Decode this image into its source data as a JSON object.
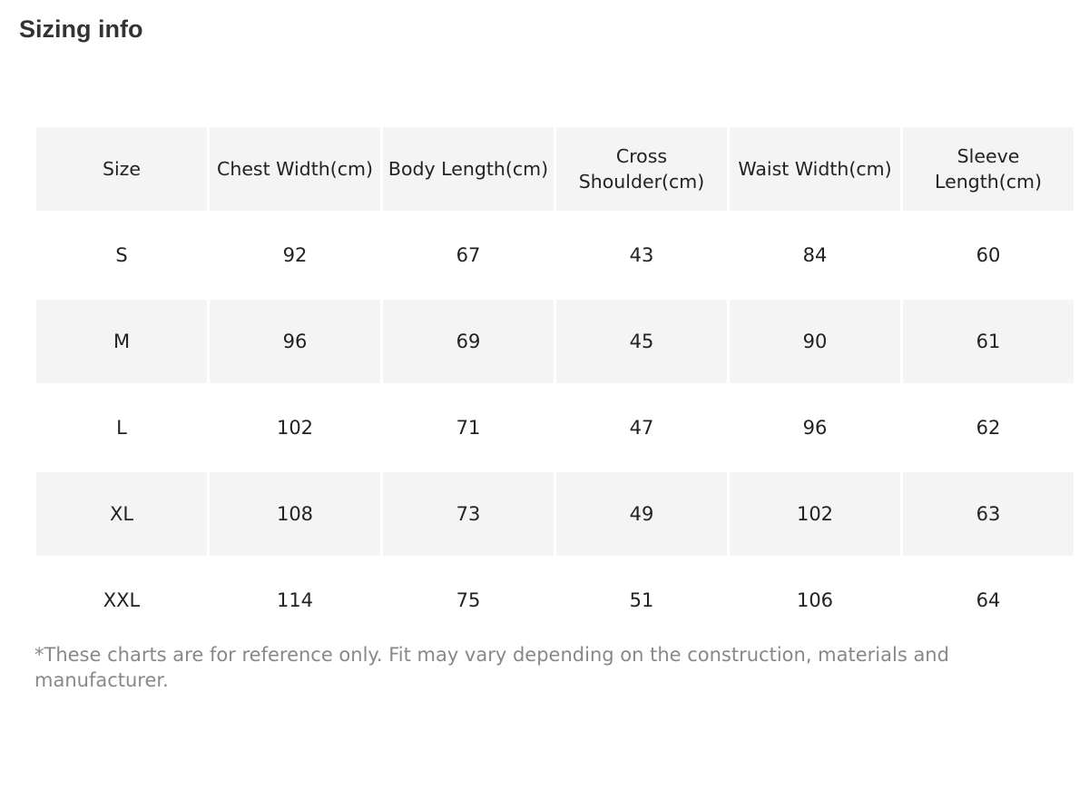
{
  "title": "Sizing info",
  "table": {
    "headers": [
      "Size",
      "Chest Width(cm)",
      "Body Length(cm)",
      "Cross Shoulder(cm)",
      "Waist Width(cm)",
      "Sleeve Length(cm)"
    ],
    "rows": [
      [
        "S",
        "92",
        "67",
        "43",
        "84",
        "60"
      ],
      [
        "M",
        "96",
        "69",
        "45",
        "90",
        "61"
      ],
      [
        "L",
        "102",
        "71",
        "47",
        "96",
        "62"
      ],
      [
        "XL",
        "108",
        "73",
        "49",
        "102",
        "63"
      ],
      [
        "XXL",
        "114",
        "75",
        "51",
        "106",
        "64"
      ]
    ]
  },
  "footnote": "*These charts are for reference only. Fit may vary depending on the construction, materials and manufacturer.",
  "colors": {
    "stripe": "#f4f4f4",
    "text": "#222222",
    "footnote": "#888888"
  }
}
